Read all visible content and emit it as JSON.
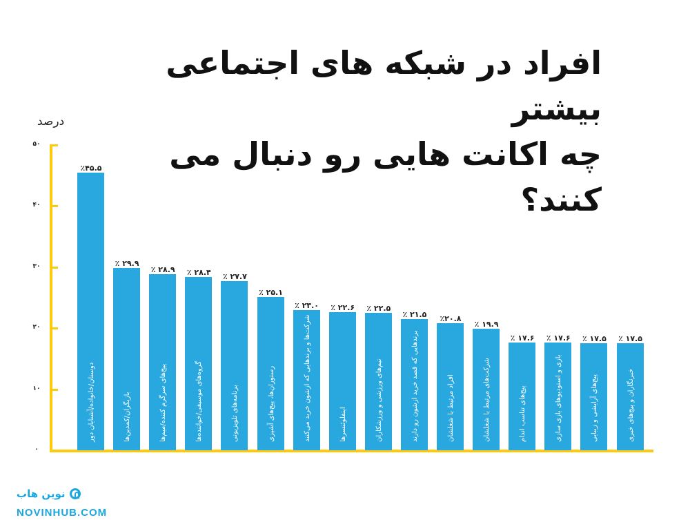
{
  "title": {
    "line1": "افراد در شبکه های اجتماعی بیشتر",
    "line2": "چه اکانت هایی رو دنبال می کنند؟"
  },
  "brand": {
    "name_fa": "نوین هاب",
    "site": "NOVINHUB.COM",
    "icon": "novinhub-logo-icon",
    "color": "#1AA6E0"
  },
  "colors": {
    "bar": "#29A8E0",
    "axis": "#FFC90E"
  },
  "chart_data": {
    "type": "bar",
    "title": "افراد در شبکه های اجتماعی بیشتر چه اکانت هایی رو دنبال می کنند؟",
    "xlabel": "",
    "ylabel": "درصد",
    "ylim": [
      0,
      50
    ],
    "yticks": [
      0,
      10,
      20,
      30,
      40,
      50
    ],
    "ytick_labels": [
      "۰",
      "۱۰",
      "۲۰",
      "۳۰",
      "۴۰",
      "۵۰"
    ],
    "grid": false,
    "legend": null,
    "categories": [
      "دوستان/خانواده/آشنایان دور",
      "بازیگران/کمدین‌ها",
      "پیج‌های سرگرم کننده/میم‌ها",
      "گروه‌های موسیقی/خواننده‌ها",
      "برنامه‌های تلویزیونی",
      "رستوران‌ها، پیج‌های آشپزی",
      "شرکت‌ها و برندهایی که ازشون خرید می‌کنند",
      "اینفلوئنسرها",
      "تیم‌های ورزشی و ورزشکاران",
      "برندهایی که قصد خرید ازشون رو دارند",
      "افراد مرتبط با شغلشان",
      "شرکت‌های مرتبط با شغلشان",
      "پیج‌های تناسب اندام",
      "بازی و استودیوهای بازی سازی",
      "پیج‌های آرایشی و زیبایی",
      "خبرنگاران و پیج‌های خبری"
    ],
    "values": [
      45.5,
      29.9,
      28.9,
      28.4,
      27.7,
      25.1,
      23.0,
      22.6,
      22.5,
      21.5,
      20.8,
      19.9,
      17.6,
      17.6,
      17.5,
      17.5
    ],
    "value_labels": [
      "٪۴۵.۵",
      "٪ ۲۹.۹",
      "٪ ۲۸.۹",
      "٪ ۲۸.۴",
      "٪ ۲۷.۷",
      "٪ ۲۵.۱",
      "٪ ۲۳.۰",
      "٪ ۲۲.۶",
      "٪ ۲۲.۵",
      "٪ ۲۱.۵",
      "٪۲۰.۸",
      "٪ ۱۹.۹",
      "٪ ۱۷.۶",
      "٪ ۱۷.۶",
      "٪ ۱۷.۵",
      "٪ ۱۷.۵"
    ]
  }
}
